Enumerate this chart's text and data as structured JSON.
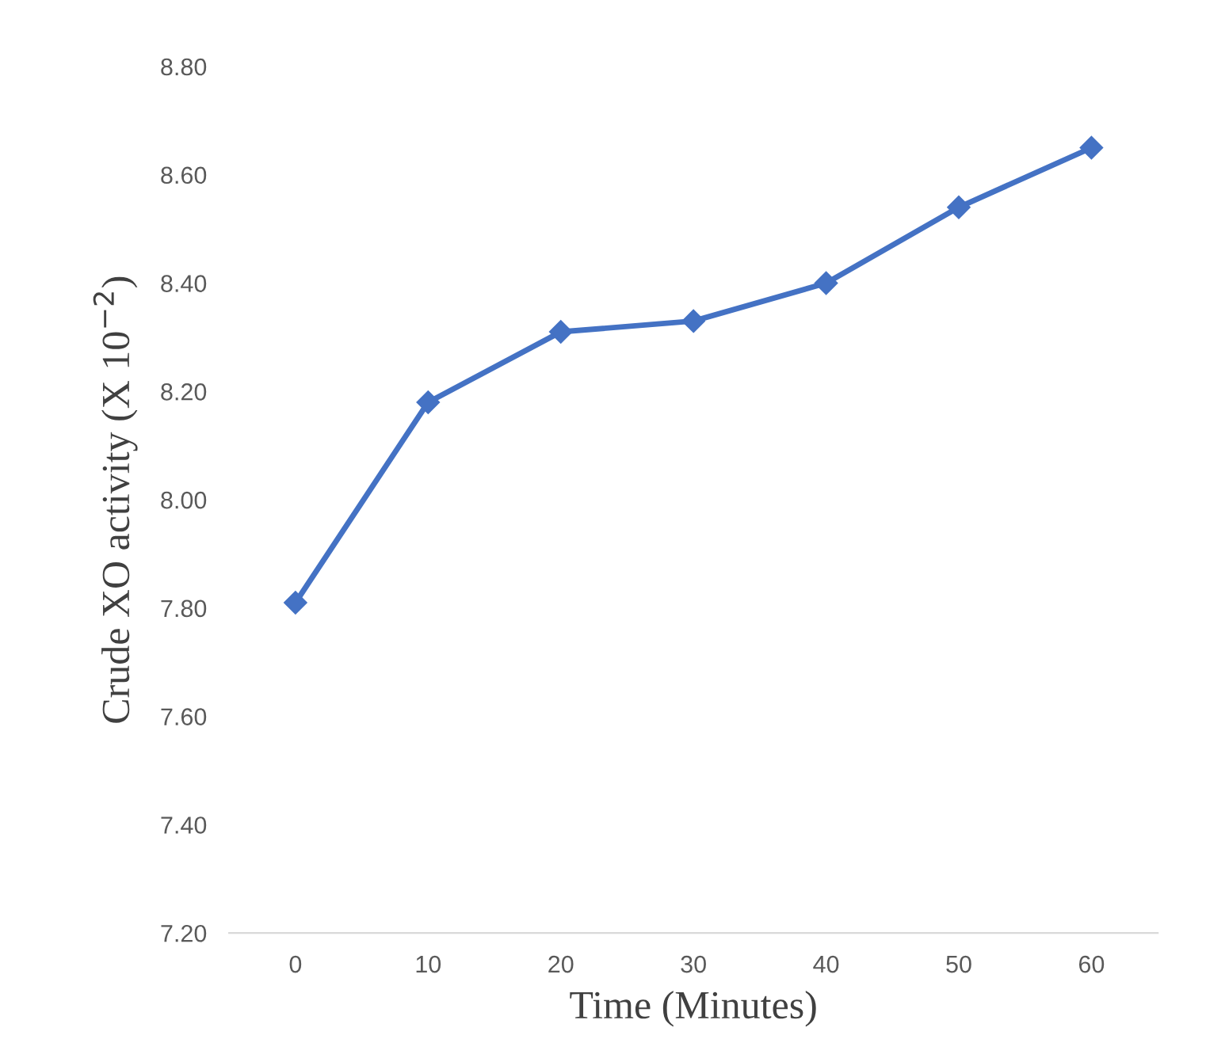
{
  "chart_data": {
    "type": "line",
    "xlabel": "Time (Minutes)",
    "ylabel": "Crude XO activity (X 10$^{−2}$)",
    "categories": [
      "0",
      "10",
      "20",
      "30",
      "40",
      "50",
      "60"
    ],
    "series": [
      {
        "color": "#4472c4",
        "values": [
          7.81,
          8.18,
          8.31,
          8.33,
          8.4,
          8.54,
          8.65
        ]
      }
    ],
    "ylim": [
      7.2,
      8.8
    ],
    "yticks": [
      {
        "value": 7.2,
        "label": "7.20"
      },
      {
        "value": 7.4,
        "label": "7.40"
      },
      {
        "value": 7.6,
        "label": "7.60"
      },
      {
        "value": 7.8,
        "label": "7.80"
      },
      {
        "value": 8.0,
        "label": "8.00"
      },
      {
        "value": 8.2,
        "label": "8.20"
      },
      {
        "value": 8.4,
        "label": "8.40"
      },
      {
        "value": 8.6,
        "label": "8.60"
      },
      {
        "value": 8.8,
        "label": "8.80"
      }
    ],
    "grid": false,
    "marker": "diamond",
    "line_style": "solid"
  }
}
